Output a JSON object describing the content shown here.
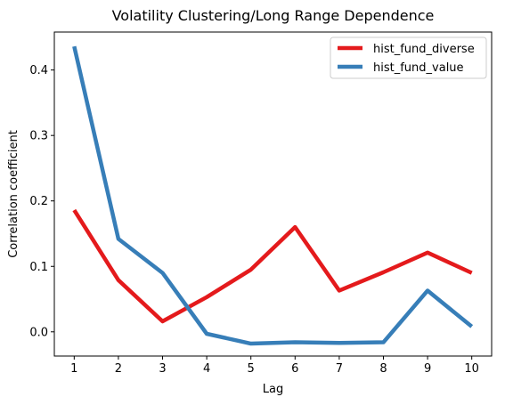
{
  "chart_data": {
    "type": "line",
    "title": "Volatility Clustering/Long Range Dependence",
    "xlabel": "Lag",
    "ylabel": "Correlation coefficient",
    "x": [
      1,
      2,
      3,
      4,
      5,
      6,
      7,
      8,
      9,
      10
    ],
    "xlim": [
      0.55,
      10.45
    ],
    "ylim": [
      -0.037,
      0.458
    ],
    "xticks": [
      1,
      2,
      3,
      4,
      5,
      6,
      7,
      8,
      9,
      10
    ],
    "yticks": [
      0.0,
      0.1,
      0.2,
      0.3,
      0.4
    ],
    "ytick_labels": [
      "0.0",
      "0.1",
      "0.2",
      "0.3",
      "0.4"
    ],
    "grid": false,
    "legend_position": "top-right",
    "series": [
      {
        "name": "hist_fund_diverse",
        "color": "#e41a1c",
        "values": [
          0.186,
          0.079,
          0.016,
          0.053,
          0.095,
          0.16,
          0.063,
          0.091,
          0.121,
          0.09
        ]
      },
      {
        "name": "hist_fund_value",
        "color": "#377eb8",
        "values": [
          0.436,
          0.142,
          0.09,
          -0.003,
          -0.018,
          -0.016,
          -0.017,
          -0.016,
          0.063,
          0.008
        ]
      }
    ]
  }
}
